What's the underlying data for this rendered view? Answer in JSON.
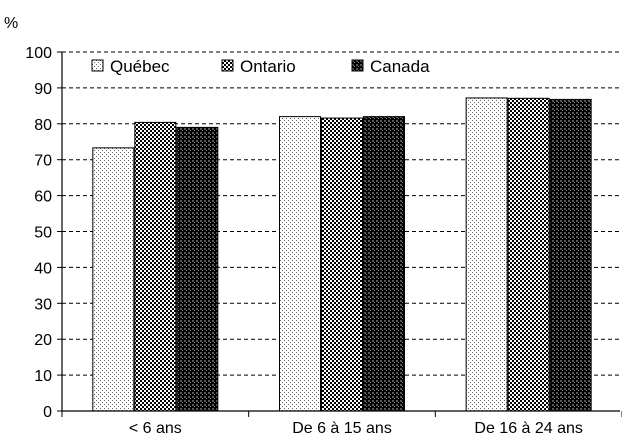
{
  "chart_data": {
    "type": "bar",
    "unit_label": "%",
    "categories": [
      "< 6 ans",
      "De 6 à 15 ans",
      "De 16 à 24 ans"
    ],
    "series": [
      {
        "name": "Québec",
        "pattern": "light-dots",
        "values": [
          73.3,
          82.0,
          87.2
        ]
      },
      {
        "name": "Ontario",
        "pattern": "checker",
        "values": [
          80.4,
          81.6,
          87.1
        ]
      },
      {
        "name": "Canada",
        "pattern": "dense-checker",
        "values": [
          79.0,
          82.0,
          86.8
        ]
      }
    ],
    "ylim": [
      0,
      100
    ],
    "yticks": [
      0,
      10,
      20,
      30,
      40,
      50,
      60,
      70,
      80,
      90,
      100
    ],
    "grid": "dashed horizontal",
    "legend_position": "top-left",
    "colors": {
      "axis": "#000000",
      "grid": "#000000",
      "background": "#ffffff"
    }
  }
}
